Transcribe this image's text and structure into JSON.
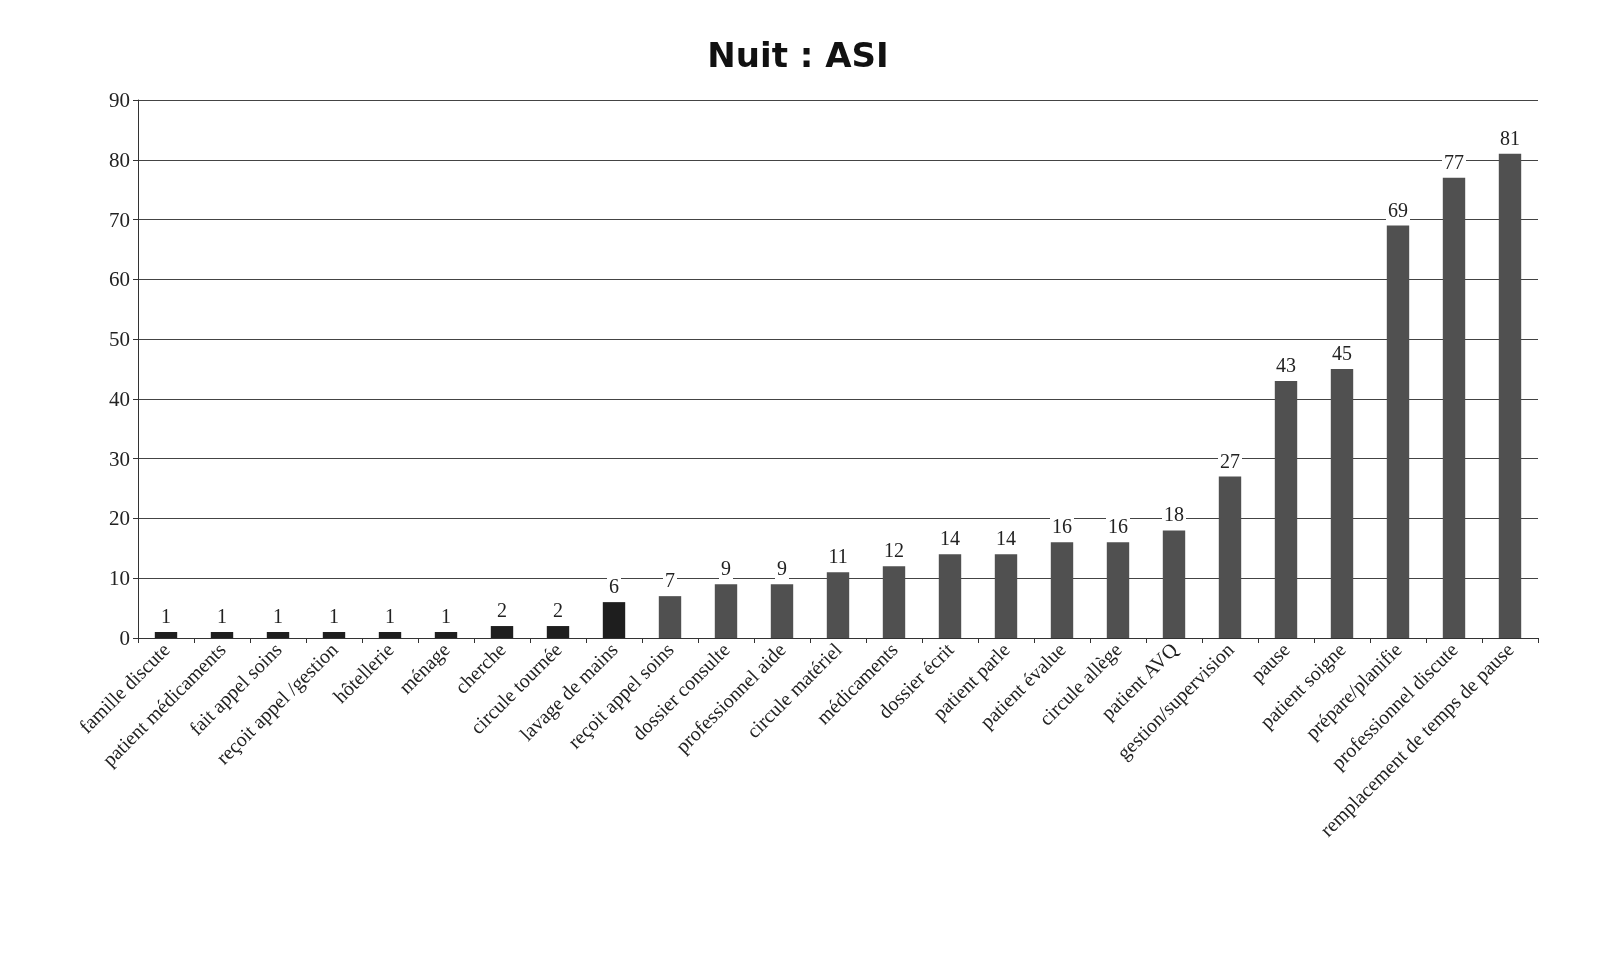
{
  "chart_data": {
    "type": "bar",
    "title": "Nuit : ASI",
    "categories": [
      "famille discute",
      "patient médicaments",
      "fait appel soins",
      "reçoit appel /gestion",
      "hôtellerie",
      "ménage",
      "cherche",
      "circule tournée",
      "lavage de mains",
      "reçoit appel soins",
      "dossier consulte",
      "professionnel aide",
      "circule matériel",
      "médicaments",
      "dossier écrit",
      "patient parle",
      "patient évalue",
      "circule allège",
      "patient AVQ",
      "gestion/supervision",
      "pause",
      "patient soigne",
      "prépare/planifie",
      "professionnel discute",
      "remplacement de temps de pause"
    ],
    "values": [
      1,
      1,
      1,
      1,
      1,
      1,
      2,
      2,
      6,
      7,
      9,
      9,
      11,
      12,
      14,
      14,
      16,
      16,
      18,
      27,
      43,
      45,
      69,
      77,
      81
    ],
    "colors": [
      "#1e1e1e",
      "#1e1e1e",
      "#1e1e1e",
      "#1e1e1e",
      "#1e1e1e",
      "#1e1e1e",
      "#1e1e1e",
      "#1e1e1e",
      "#1e1e1e",
      "#505050",
      "#505050",
      "#505050",
      "#505050",
      "#505050",
      "#505050",
      "#505050",
      "#505050",
      "#505050",
      "#505050",
      "#505050",
      "#505050",
      "#505050",
      "#505050",
      "#505050",
      "#505050"
    ],
    "ylim": [
      0,
      90
    ],
    "yticks": [
      0,
      10,
      20,
      30,
      40,
      50,
      60,
      70,
      80,
      90
    ],
    "grid": "y",
    "data_labels": true
  }
}
